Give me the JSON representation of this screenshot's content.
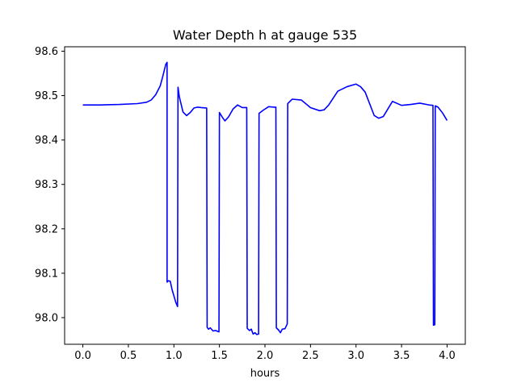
{
  "chart_data": {
    "type": "line",
    "title": "Water Depth h at gauge 535",
    "xlabel": "hours",
    "ylabel": "",
    "xlim": [
      -0.2,
      4.2
    ],
    "ylim": [
      97.94,
      98.61
    ],
    "xticks": [
      0.0,
      0.5,
      1.0,
      1.5,
      2.0,
      2.5,
      3.0,
      3.5,
      4.0
    ],
    "xtick_labels": [
      "0.0",
      "0.5",
      "1.0",
      "1.5",
      "2.0",
      "2.5",
      "3.0",
      "3.5",
      "4.0"
    ],
    "yticks": [
      98.0,
      98.1,
      98.2,
      98.3,
      98.4,
      98.5,
      98.6
    ],
    "ytick_labels": [
      "98.0",
      "98.1",
      "98.2",
      "98.3",
      "98.4",
      "98.5",
      "98.6"
    ],
    "grid": false,
    "series": [
      {
        "color": "#0000ff",
        "x": [
          0.0,
          0.2,
          0.4,
          0.6,
          0.7,
          0.75,
          0.8,
          0.85,
          0.88,
          0.91,
          0.925,
          0.925,
          0.94,
          0.96,
          0.98,
          1.02,
          1.04,
          1.045,
          1.06,
          1.1,
          1.14,
          1.18,
          1.22,
          1.26,
          1.3,
          1.36,
          1.365,
          1.38,
          1.4,
          1.43,
          1.46,
          1.48,
          1.495,
          1.5,
          1.53,
          1.56,
          1.6,
          1.65,
          1.7,
          1.75,
          1.8,
          1.805,
          1.83,
          1.85,
          1.87,
          1.89,
          1.91,
          1.93,
          1.935,
          1.98,
          2.04,
          2.1,
          2.12,
          2.125,
          2.15,
          2.17,
          2.19,
          2.22,
          2.245,
          2.25,
          2.3,
          2.4,
          2.5,
          2.6,
          2.65,
          2.7,
          2.8,
          2.9,
          3.0,
          3.05,
          3.1,
          3.2,
          3.25,
          3.3,
          3.4,
          3.5,
          3.6,
          3.7,
          3.8,
          3.845,
          3.85,
          3.865,
          3.87,
          3.9,
          3.95,
          4.0
        ],
        "values": [
          98.479,
          98.479,
          98.48,
          98.482,
          98.485,
          98.49,
          98.502,
          98.522,
          98.545,
          98.57,
          98.575,
          98.08,
          98.083,
          98.082,
          98.063,
          98.035,
          98.025,
          98.519,
          98.497,
          98.463,
          98.455,
          98.462,
          98.472,
          98.474,
          98.473,
          98.472,
          97.978,
          97.974,
          97.977,
          97.97,
          97.971,
          97.969,
          97.968,
          98.462,
          98.452,
          98.443,
          98.452,
          98.47,
          98.479,
          98.473,
          98.473,
          97.976,
          97.971,
          97.974,
          97.963,
          97.966,
          97.962,
          97.963,
          98.46,
          98.467,
          98.475,
          98.474,
          98.474,
          97.977,
          97.972,
          97.966,
          97.974,
          97.975,
          97.986,
          98.482,
          98.492,
          98.49,
          98.473,
          98.466,
          98.468,
          98.479,
          98.51,
          98.52,
          98.526,
          98.52,
          98.508,
          98.455,
          98.449,
          98.453,
          98.487,
          98.478,
          98.48,
          98.483,
          98.479,
          98.478,
          97.983,
          97.984,
          98.477,
          98.474,
          98.461,
          98.444
        ]
      }
    ]
  }
}
